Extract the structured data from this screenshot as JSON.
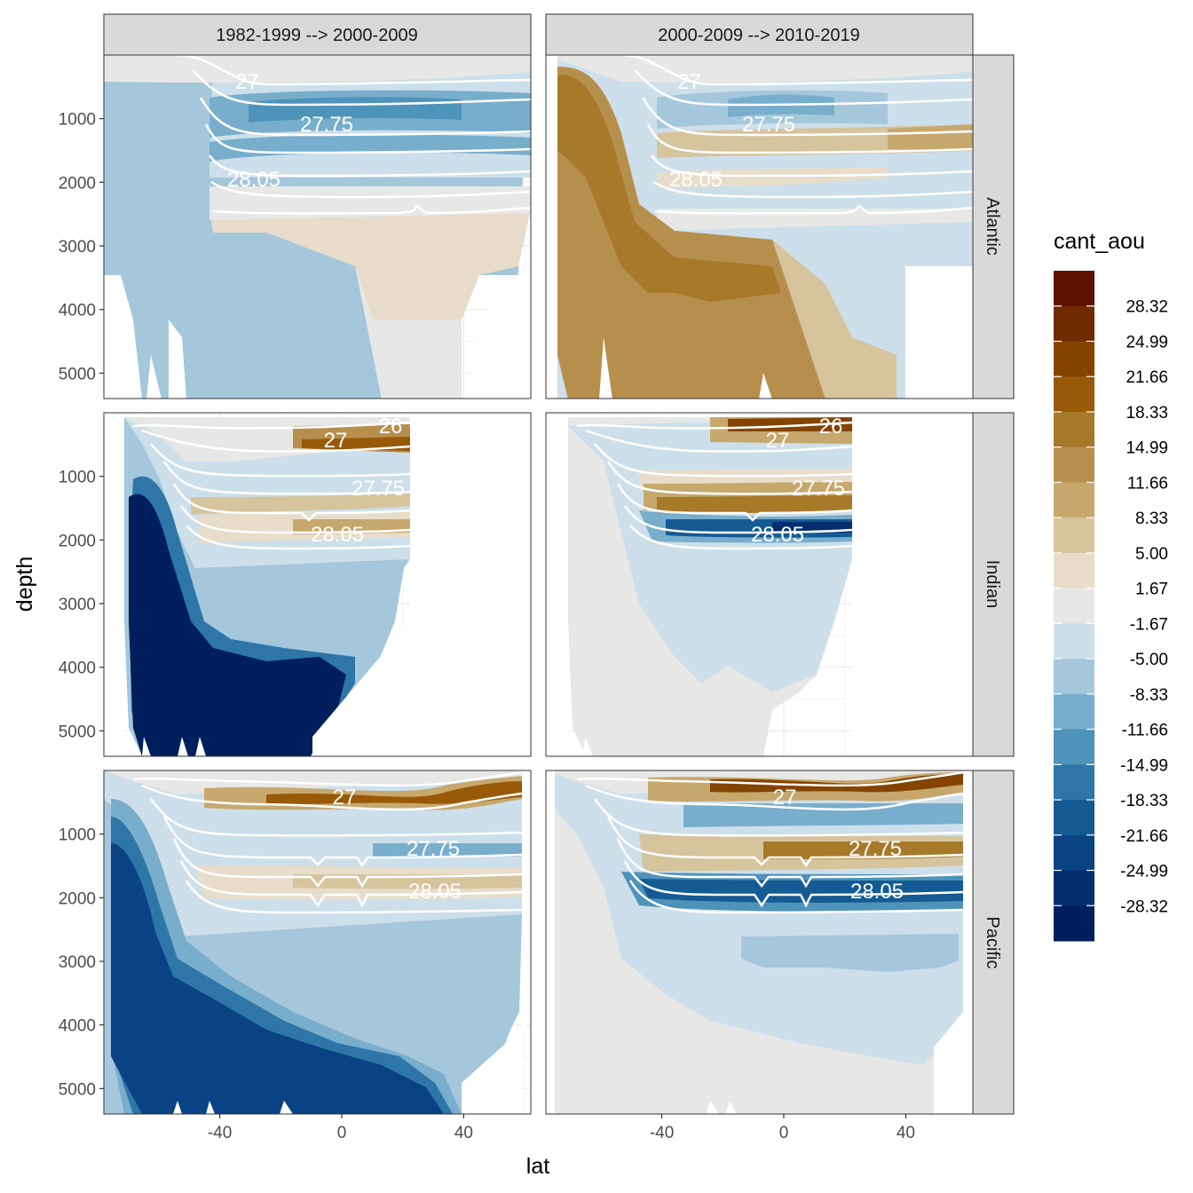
{
  "chart_data": {
    "type": "heatmap",
    "title": "",
    "xlabel": "lat",
    "ylabel": "depth",
    "xlim": [
      -78,
      62
    ],
    "ylim_reversed": [
      5400,
      0
    ],
    "x_ticks": [
      -40,
      0,
      40
    ],
    "x_tick_labels": [
      "-40",
      "0",
      "40"
    ],
    "y_ticks": [
      1000,
      2000,
      3000,
      4000,
      5000
    ],
    "y_tick_labels": [
      "1000",
      "2000",
      "3000",
      "4000",
      "5000"
    ],
    "columns": [
      "1982-1999 --> 2000-2009",
      "2000-2009 --> 2010-2019"
    ],
    "rows": [
      "Atlantic",
      "Indian",
      "Pacific"
    ],
    "legend": {
      "title": "cant_aou",
      "position": "right",
      "labels": [
        "28.32",
        "24.99",
        "21.66",
        "18.33",
        "14.99",
        "11.66",
        "8.33",
        "5.00",
        "1.67",
        "-1.67",
        "-5.00",
        "-8.33",
        "-11.66",
        "-14.99",
        "-18.33",
        "-21.66",
        "-24.99",
        "-28.32"
      ],
      "colors": [
        "#5c1000",
        "#702a00",
        "#844400",
        "#985a08",
        "#a77a2a",
        "#b78f4c",
        "#c6a86d",
        "#d6c49d",
        "#e8ddca",
        "#e7e8e6",
        "#cddfea",
        "#a5c7dc",
        "#78aecc",
        "#4e93b9",
        "#2d76a7",
        "#145a93",
        "#0a4383",
        "#052e70",
        "#001f5c"
      ]
    },
    "isopycnal_labels": [
      "26",
      "27",
      "27.75",
      "28.05"
    ],
    "panels": [
      {
        "row": "Atlantic",
        "column": "1982-1999 --> 2000-2009",
        "summary": "Weak negative anomalies (-8 to -2) at depth; strong negative band (-15 to -10) near 27.75 isopycnal north of 30S; weak positive (2 to 5) between 2500-4000 m in the north",
        "contour_labels": [
          "27",
          "27.75",
          "28.05"
        ]
      },
      {
        "row": "Atlantic",
        "column": "2000-2009 --> 2010-2019",
        "summary": "Strong positive anomalies (12 to 20) in southern deep water; moderate positive near 27.75 and 28.05 in the north; weak negative at mid depths",
        "contour_labels": [
          "27",
          "27.75",
          "28.05"
        ]
      },
      {
        "row": "Indian",
        "column": "1982-1999 --> 2000-2009",
        "summary": "Very strong negative anomalies (below -28) in southern bottom water; weak positive bands between isopycnals 27 and 28.05",
        "contour_labels": [
          "26",
          "27",
          "27.75",
          "28.05"
        ]
      },
      {
        "row": "Indian",
        "column": "2000-2009 --> 2010-2019",
        "summary": "Near zero at depth; strong positive near 26-27; strong negative band (-20) near 28.05 in the north",
        "contour_labels": [
          "26",
          "27",
          "27.75",
          "28.05"
        ]
      },
      {
        "row": "Pacific",
        "column": "1982-1999 --> 2000-2009",
        "summary": "Strong negative anomalies (-25 to -18) in southern deep and bottom water; positive near 27 and 28.05 bands",
        "contour_labels": [
          "27",
          "27.75",
          "28.05"
        ]
      },
      {
        "row": "Pacific",
        "column": "2000-2009 --> 2010-2019",
        "summary": "Near zero at depth; strong positive near 27; strong negative band (-18) near 28.05",
        "contour_labels": [
          "27",
          "27.75",
          "28.05"
        ]
      }
    ]
  }
}
